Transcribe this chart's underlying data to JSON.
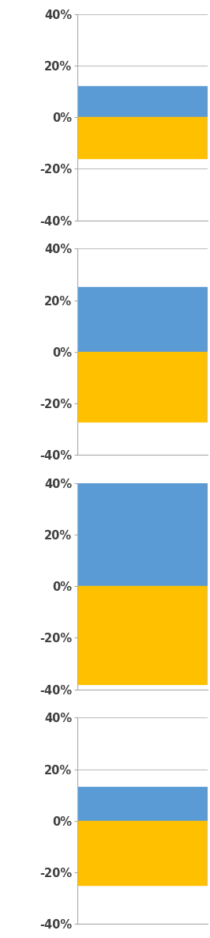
{
  "charts": [
    {
      "blue_value": 12,
      "yellow_value": -16
    },
    {
      "blue_value": 25,
      "yellow_value": -27
    },
    {
      "blue_value": 40,
      "yellow_value": -38
    },
    {
      "blue_value": 13,
      "yellow_value": -25
    }
  ],
  "blue_color": "#5B9BD5",
  "yellow_color": "#FFC000",
  "ylim": [
    -40,
    40
  ],
  "yticks": [
    -40,
    -20,
    0,
    20,
    40
  ],
  "ytick_labels": [
    "-40%",
    "-20%",
    "0%",
    "20%",
    "40%"
  ],
  "background_color": "#FFFFFF",
  "grid_color": "#BFBFBF",
  "tick_color": "#404040",
  "spine_color": "#ABABAB"
}
